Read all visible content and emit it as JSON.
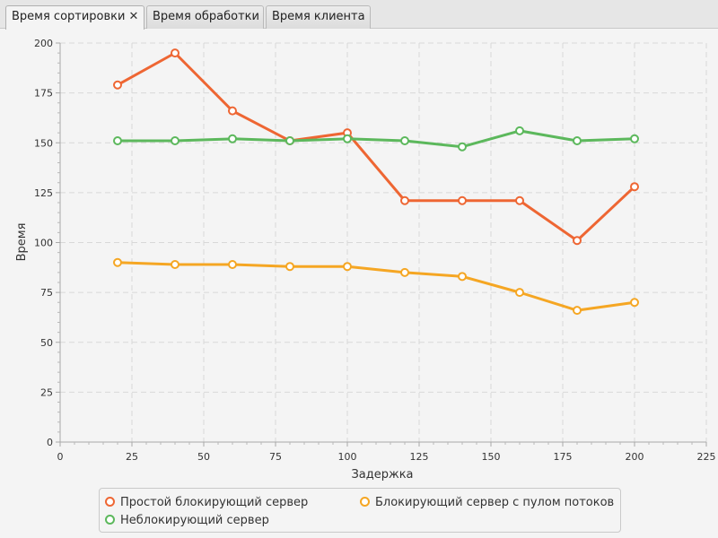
{
  "tabs": [
    {
      "label": "Время сортировки",
      "selected": true,
      "closable": true,
      "close_glyph": "✕"
    },
    {
      "label": "Время обработки",
      "selected": false,
      "closable": false
    },
    {
      "label": "Время клиента",
      "selected": false,
      "closable": false
    }
  ],
  "chart_data": {
    "type": "line",
    "xlabel": "Задержка",
    "ylabel": "Время",
    "xlim": [
      0,
      225
    ],
    "ylim": [
      0,
      200
    ],
    "x_ticks": [
      0,
      25,
      50,
      75,
      100,
      125,
      150,
      175,
      200,
      225
    ],
    "y_ticks": [
      0,
      25,
      50,
      75,
      100,
      125,
      150,
      175,
      200
    ],
    "grid": true,
    "legend_position": "bottom",
    "x": [
      20,
      40,
      60,
      80,
      100,
      120,
      140,
      160,
      180,
      200
    ],
    "series": [
      {
        "name": "Простой блокирующий сервер",
        "color": "#ee6633",
        "values": [
          179,
          195,
          166,
          151,
          155,
          121,
          121,
          121,
          101,
          128
        ]
      },
      {
        "name": "Блокирующий сервер с пулом потоков",
        "color": "#f5a623",
        "values": [
          90,
          89,
          89,
          88,
          88,
          85,
          83,
          75,
          66,
          70
        ]
      },
      {
        "name": "Неблокирующий сервер",
        "color": "#5cb85c",
        "values": [
          151,
          151,
          152,
          151,
          152,
          151,
          148,
          156,
          151,
          152
        ]
      }
    ]
  }
}
